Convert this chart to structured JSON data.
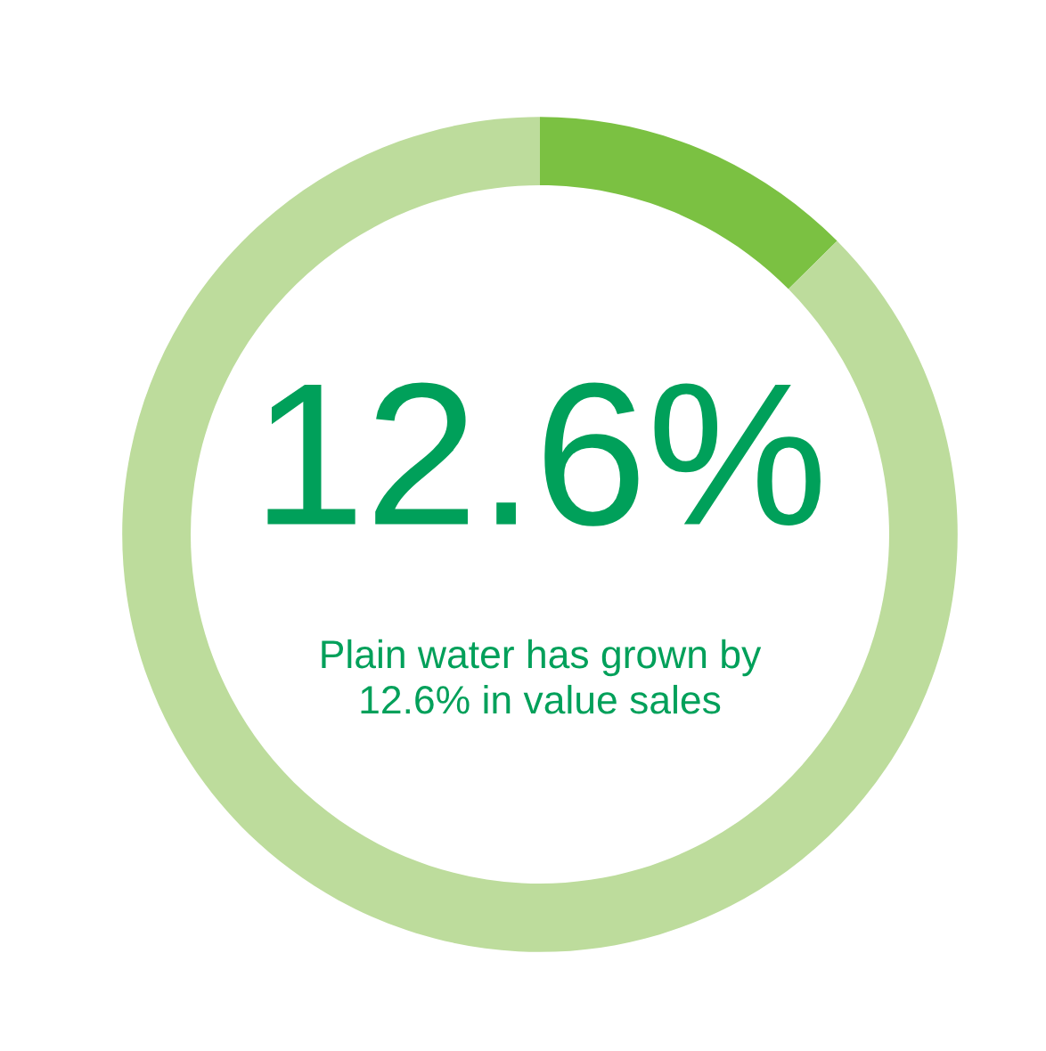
{
  "chart_data": {
    "type": "donut",
    "categories": [
      null,
      null
    ],
    "values": [
      12.6,
      87.4
    ],
    "colors": [
      "#7bc142",
      "#bddc9c"
    ],
    "annotations": [
      "12.6%",
      "Plain water has grown by\n12.6% in value sales"
    ]
  }
}
